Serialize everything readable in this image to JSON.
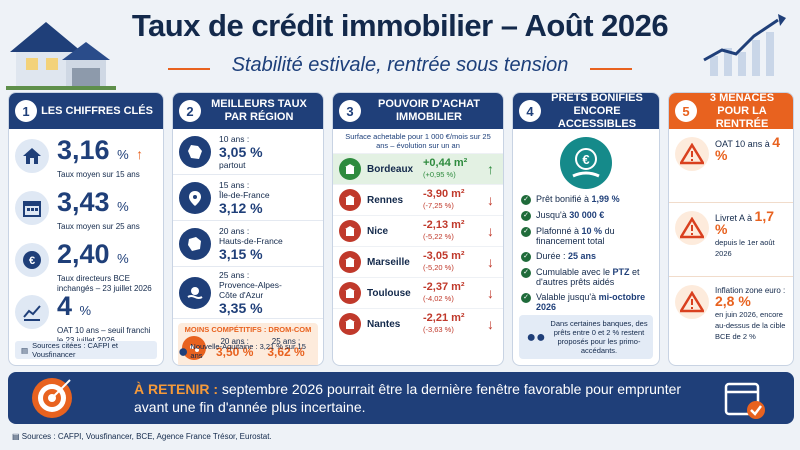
{
  "header": {
    "title": "Taux de crédit immobilier – Août 2026",
    "subtitle": "Stabilité estivale, rentrée sous tension"
  },
  "panel1": {
    "number": "1",
    "title": "LES CHIFFRES CLÉS",
    "stats": [
      {
        "value": "3,16",
        "unit": "%",
        "label": "Taux moyen sur 15 ans",
        "icon": "house-icon",
        "trend": "up"
      },
      {
        "value": "3,43",
        "unit": "%",
        "label": "Taux moyen sur 25 ans",
        "icon": "calendar-icon",
        "trend": ""
      },
      {
        "value": "2,40",
        "unit": "%",
        "label": "Taux directeurs BCE inchangés – 23 juillet 2026",
        "icon": "euro-icon",
        "trend": ""
      },
      {
        "value": "4",
        "unit": "%",
        "label": "OAT 10 ans – seuil franchi le 23 juillet 2026",
        "icon": "chart-icon",
        "trend": ""
      }
    ],
    "sources": "Sources citées : CAFPI et Vousfinancer"
  },
  "panel2": {
    "number": "2",
    "title": "MEILLEURS TAUX PAR RÉGION",
    "regions": [
      {
        "duration": "10 ans :",
        "rate": "3,05 %",
        "region": "partout",
        "icon": "france-map-icon"
      },
      {
        "duration": "15 ans :",
        "rate": "3,12 %",
        "region": "Île-de-France",
        "icon": "location-pin-icon"
      },
      {
        "duration": "20 ans :",
        "rate": "3,15 %",
        "region": "Hauts-de-France",
        "icon": "region-map-icon"
      },
      {
        "duration": "25 ans :",
        "rate": "3,35 %",
        "region": "Provence-Alpes-Côte d'Azur",
        "icon": "sun-sea-icon"
      }
    ],
    "domtom": {
      "title": "MOINS COMPÉTITIFS : DROM-COM",
      "items": [
        {
          "duration": "20 ans :",
          "rate": "3,50 %"
        },
        {
          "duration": "25 ans :",
          "rate": "3,62 %"
        }
      ]
    },
    "note": "Nouvelle-Aquitaine : 3,21 % sur 15 ans"
  },
  "panel3": {
    "number": "3",
    "title": "POUVOIR D'ACHAT IMMOBILIER",
    "note": "Surface achetable pour 1 000 €/mois sur 25 ans – évolution sur un an",
    "cities": [
      {
        "name": "Bordeaux",
        "value": "+0,44 m²",
        "pct": "(+0,95 %)",
        "trend": "up"
      },
      {
        "name": "Rennes",
        "value": "-3,90 m²",
        "pct": "(-7,25 %)",
        "trend": "down"
      },
      {
        "name": "Nice",
        "value": "-2,13 m²",
        "pct": "(-5,22 %)",
        "trend": "down"
      },
      {
        "name": "Marseille",
        "value": "-3,05 m²",
        "pct": "(-5,20 %)",
        "trend": "down"
      },
      {
        "name": "Toulouse",
        "value": "-2,37 m²",
        "pct": "(-4,02 %)",
        "trend": "down"
      },
      {
        "name": "Nantes",
        "value": "-2,21 m²",
        "pct": "(-3,63 %)",
        "trend": "down"
      }
    ]
  },
  "panel4": {
    "number": "4",
    "title": "PRÊTS BONIFIÉS ENCORE ACCESSIBLES",
    "items": [
      {
        "text": "Prêt bonifié à ",
        "hl": "1,99 %"
      },
      {
        "text": "Jusqu'à ",
        "hl": "30 000 €"
      },
      {
        "text": "Plafonné à ",
        "hl": "10 %",
        "after": " du financement total"
      },
      {
        "text": "Durée : ",
        "hl": "25 ans"
      },
      {
        "text": "Cumulable avec le ",
        "hl": "PTZ",
        "after": " et d'autres prêts aidés"
      },
      {
        "text": "Valable jusqu'à ",
        "hl": "mi-octobre 2026"
      }
    ],
    "note": "Dans certaines banques, des prêts entre 0 et 2 % restent proposés pour les primo-accédants."
  },
  "panel5": {
    "number": "5",
    "title": "3 MENACES POUR LA RENTRÉE",
    "threats": [
      {
        "label": "OAT 10 ans à ",
        "value": "4 %",
        "extra": ""
      },
      {
        "label": "Livret A à ",
        "value": "1,7 %",
        "extra": "depuis le 1er août 2026"
      },
      {
        "label": "Inflation zone euro :",
        "value": "2,8 %",
        "extra": "en juin 2026, encore au-dessus de la cible BCE de 2 %"
      }
    ]
  },
  "retenir": {
    "label": "À RETENIR :",
    "text": "septembre 2026 pourrait être la dernière fenêtre favorable pour emprunter avant une fin d'année plus incertaine."
  },
  "footer": {
    "sources": "Sources : CAFPI, Vousfinancer, BCE, Agence France Trésor, Eurostat."
  },
  "colors": {
    "navy": "#1f3f79",
    "orange": "#e8621f",
    "green": "#2e8b3e",
    "red": "#c0392b",
    "teal": "#158a8a"
  }
}
